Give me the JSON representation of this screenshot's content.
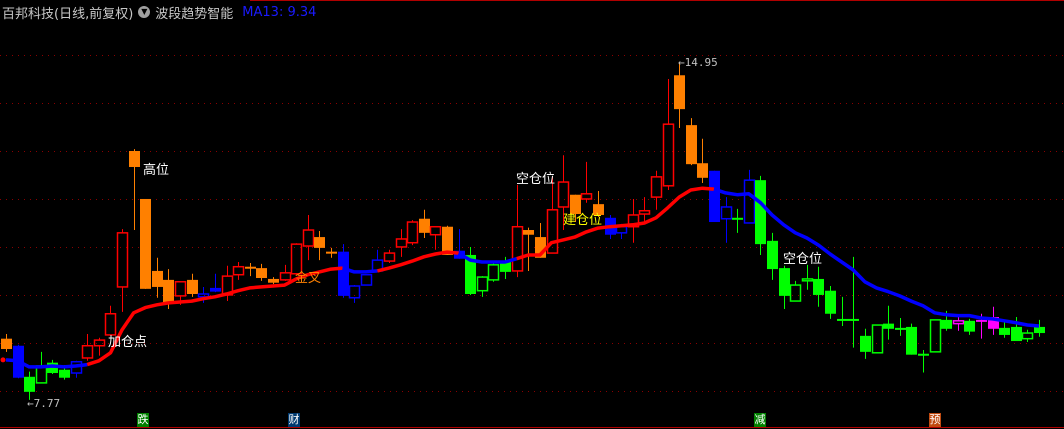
{
  "header": {
    "title": "百邦科技(日线,前复权)",
    "menu_icon": "chevron-down-circle-icon",
    "indicator": "波段趋势智能",
    "ma_label": "MA13: 9.34"
  },
  "colors": {
    "background": "#000000",
    "grid": "#8b0000",
    "up_hollow": "#ff0000",
    "orange": "#ff8000",
    "blue": "#0000ff",
    "green": "#00ff00",
    "magenta": "#ff00ff",
    "ma_up": "#ff0000",
    "ma_down": "#0000ff"
  },
  "annotations": {
    "high_pos": "高位",
    "add_pos": "加仓点",
    "golden_cross": "金叉",
    "empty_pos_1": "空仓位",
    "build_pos": "建仓位",
    "empty_pos_2": "空仓位",
    "max_price": "14.95",
    "min_price": "7.77",
    "max_arrow": "←",
    "min_arrow": "←"
  },
  "markers": [
    {
      "label": "跌",
      "color": "#008000"
    },
    {
      "label": "财",
      "color": "#003a70"
    },
    {
      "label": "减",
      "color": "#008000"
    },
    {
      "label": "预",
      "color": "#c04a10"
    }
  ],
  "chart_data": {
    "type": "candlestick",
    "title": "",
    "ylim": [
      7.15,
      16.27
    ],
    "grid": true,
    "candle_fields": [
      "open",
      "high",
      "low",
      "close",
      "style"
    ],
    "candles": [
      [
        9.07,
        9.17,
        8.79,
        8.85,
        "o"
      ],
      [
        8.92,
        8.94,
        8.23,
        8.24,
        "b"
      ],
      [
        8.26,
        8.37,
        7.77,
        7.94,
        "g"
      ],
      [
        8.13,
        8.79,
        8.13,
        8.49,
        "gh"
      ],
      [
        8.56,
        8.62,
        8.32,
        8.34,
        "g"
      ],
      [
        8.41,
        8.51,
        8.2,
        8.24,
        "g"
      ],
      [
        8.34,
        8.6,
        8.24,
        8.58,
        "bh"
      ],
      [
        8.66,
        9.17,
        8.6,
        8.92,
        "r"
      ],
      [
        8.92,
        9.09,
        8.71,
        9.04,
        "r"
      ],
      [
        9.15,
        9.77,
        9.15,
        9.6,
        "r"
      ],
      [
        10.17,
        11.4,
        9.64,
        11.32,
        "r"
      ],
      [
        13.06,
        13.1,
        11.38,
        12.72,
        "o"
      ],
      [
        12.04,
        12.04,
        10.13,
        10.13,
        "o"
      ],
      [
        10.51,
        10.79,
        9.94,
        10.17,
        "o"
      ],
      [
        10.32,
        10.55,
        9.7,
        9.83,
        "o"
      ],
      [
        9.98,
        10.28,
        9.79,
        10.28,
        "r"
      ],
      [
        10.32,
        10.45,
        9.96,
        10.02,
        "o"
      ],
      [
        9.96,
        10.17,
        9.83,
        10.02,
        "bh"
      ],
      [
        10.15,
        10.45,
        10.06,
        10.07,
        "b"
      ],
      [
        10.0,
        10.62,
        9.87,
        10.4,
        "r"
      ],
      [
        10.43,
        10.7,
        10.32,
        10.6,
        "r"
      ],
      [
        10.6,
        10.68,
        10.4,
        10.58,
        "o"
      ],
      [
        10.57,
        10.66,
        10.3,
        10.36,
        "o"
      ],
      [
        10.34,
        10.38,
        10.23,
        10.26,
        "o"
      ],
      [
        10.32,
        10.64,
        10.3,
        10.47,
        "r"
      ],
      [
        10.45,
        11.1,
        10.43,
        11.08,
        "r"
      ],
      [
        11.04,
        11.7,
        10.74,
        11.38,
        "r"
      ],
      [
        11.23,
        11.36,
        10.74,
        11.0,
        "o"
      ],
      [
        10.92,
        11.0,
        10.79,
        10.9,
        "o"
      ],
      [
        10.92,
        11.08,
        9.94,
        9.98,
        "b"
      ],
      [
        9.94,
        10.21,
        9.83,
        10.19,
        "bh"
      ],
      [
        10.21,
        10.43,
        10.21,
        10.43,
        "bh"
      ],
      [
        10.51,
        10.96,
        10.51,
        10.74,
        "bh"
      ],
      [
        10.72,
        10.96,
        10.68,
        10.89,
        "r"
      ],
      [
        11.02,
        11.4,
        10.81,
        11.19,
        "r"
      ],
      [
        11.11,
        11.59,
        11.06,
        11.55,
        "r"
      ],
      [
        11.62,
        11.81,
        11.21,
        11.32,
        "o"
      ],
      [
        11.28,
        11.45,
        10.96,
        11.45,
        "r"
      ],
      [
        11.45,
        11.47,
        10.85,
        10.85,
        "o"
      ],
      [
        10.94,
        11.4,
        10.77,
        10.77,
        "b"
      ],
      [
        10.85,
        11.02,
        10.0,
        10.02,
        "g"
      ],
      [
        10.09,
        10.4,
        9.96,
        10.38,
        "gh"
      ],
      [
        10.32,
        10.72,
        10.28,
        10.64,
        "gh"
      ],
      [
        10.7,
        10.81,
        10.34,
        10.49,
        "g"
      ],
      [
        10.51,
        12.34,
        10.38,
        11.45,
        "r"
      ],
      [
        11.38,
        11.43,
        10.51,
        11.28,
        "o"
      ],
      [
        11.23,
        11.53,
        10.79,
        10.79,
        "o"
      ],
      [
        10.89,
        12.51,
        10.89,
        11.81,
        "r"
      ],
      [
        11.87,
        12.97,
        11.38,
        12.4,
        "r"
      ],
      [
        12.13,
        12.13,
        11.55,
        11.72,
        "o"
      ],
      [
        12.04,
        12.83,
        11.96,
        12.15,
        "r"
      ],
      [
        11.93,
        12.21,
        11.66,
        11.7,
        "o"
      ],
      [
        11.64,
        11.7,
        11.19,
        11.28,
        "b"
      ],
      [
        11.32,
        11.51,
        11.19,
        11.45,
        "bh"
      ],
      [
        11.45,
        12.04,
        11.11,
        11.7,
        "r"
      ],
      [
        11.72,
        12.08,
        11.55,
        11.79,
        "r"
      ],
      [
        12.08,
        12.64,
        11.81,
        12.51,
        "r"
      ],
      [
        12.32,
        14.59,
        12.23,
        13.63,
        "r"
      ],
      [
        14.67,
        14.95,
        13.55,
        13.95,
        "o"
      ],
      [
        13.61,
        13.76,
        12.76,
        12.78,
        "o"
      ],
      [
        12.8,
        13.32,
        12.38,
        12.49,
        "o"
      ],
      [
        12.64,
        12.64,
        11.55,
        11.55,
        "b"
      ],
      [
        11.62,
        12.08,
        11.11,
        11.87,
        "bh"
      ],
      [
        11.64,
        11.83,
        11.32,
        11.62,
        "g"
      ],
      [
        11.53,
        12.66,
        11.53,
        12.44,
        "bh"
      ],
      [
        12.44,
        12.53,
        10.85,
        11.08,
        "g"
      ],
      [
        11.15,
        11.32,
        10.32,
        10.55,
        "g"
      ],
      [
        10.57,
        10.62,
        9.7,
        9.98,
        "g"
      ],
      [
        9.87,
        10.3,
        9.87,
        10.21,
        "gh"
      ],
      [
        10.3,
        10.64,
        10.11,
        10.34,
        "gh"
      ],
      [
        10.34,
        10.6,
        9.75,
        10.0,
        "g"
      ],
      [
        10.09,
        10.19,
        9.49,
        9.6,
        "g"
      ],
      [
        9.49,
        9.96,
        9.34,
        9.47,
        "g"
      ],
      [
        9.49,
        10.81,
        8.88,
        9.47,
        "g"
      ],
      [
        9.13,
        9.28,
        8.64,
        8.79,
        "g"
      ],
      [
        8.77,
        9.36,
        8.77,
        9.36,
        "gh"
      ],
      [
        9.39,
        9.77,
        9.05,
        9.28,
        "g"
      ],
      [
        9.3,
        9.51,
        9.13,
        9.28,
        "g"
      ],
      [
        9.32,
        9.39,
        8.73,
        8.73,
        "g"
      ],
      [
        8.75,
        8.83,
        8.35,
        8.73,
        "g"
      ],
      [
        8.79,
        9.47,
        8.79,
        9.47,
        "gh"
      ],
      [
        9.47,
        9.66,
        9.24,
        9.28,
        "g"
      ],
      [
        9.39,
        9.58,
        9.24,
        9.45,
        "mh"
      ],
      [
        9.45,
        9.49,
        9.15,
        9.22,
        "g"
      ],
      [
        9.47,
        9.6,
        9.07,
        9.45,
        "m"
      ],
      [
        9.53,
        9.75,
        9.15,
        9.28,
        "m"
      ],
      [
        9.3,
        9.43,
        9.09,
        9.15,
        "g"
      ],
      [
        9.32,
        9.53,
        9.02,
        9.02,
        "g"
      ],
      [
        9.07,
        9.26,
        9.0,
        9.19,
        "gh"
      ],
      [
        9.32,
        9.47,
        9.11,
        9.19,
        "g"
      ]
    ],
    "ma13": [
      8.62,
      8.6,
      8.47,
      8.47,
      8.49,
      8.47,
      8.49,
      8.52,
      8.6,
      8.77,
      9.26,
      9.62,
      9.73,
      9.79,
      9.83,
      9.85,
      9.87,
      9.92,
      9.96,
      10.02,
      10.09,
      10.15,
      10.17,
      10.19,
      10.21,
      10.34,
      10.43,
      10.49,
      10.55,
      10.57,
      10.49,
      10.49,
      10.51,
      10.57,
      10.64,
      10.72,
      10.81,
      10.87,
      10.91,
      10.89,
      10.74,
      10.7,
      10.7,
      10.7,
      10.77,
      10.85,
      10.85,
      11.11,
      11.17,
      11.23,
      11.34,
      11.42,
      11.45,
      11.47,
      11.49,
      11.53,
      11.64,
      11.85,
      12.08,
      12.23,
      12.27,
      12.25,
      12.17,
      12.13,
      12.15,
      11.96,
      11.7,
      11.49,
      11.32,
      11.21,
      11.06,
      10.87,
      10.7,
      10.53,
      10.28,
      10.15,
      10.07,
      9.98,
      9.87,
      9.77,
      9.62,
      9.58,
      9.56,
      9.56,
      9.51,
      9.49,
      9.45,
      9.41,
      9.36,
      9.34
    ],
    "ma_segments": [
      {
        "from": 0,
        "to": 7,
        "trend": "down"
      },
      {
        "from": 7,
        "to": 29,
        "trend": "up"
      },
      {
        "from": 29,
        "to": 32,
        "trend": "down"
      },
      {
        "from": 32,
        "to": 39,
        "trend": "up"
      },
      {
        "from": 39,
        "to": 44,
        "trend": "down"
      },
      {
        "from": 44,
        "to": 61,
        "trend": "up"
      },
      {
        "from": 61,
        "to": 89,
        "trend": "down"
      }
    ]
  }
}
